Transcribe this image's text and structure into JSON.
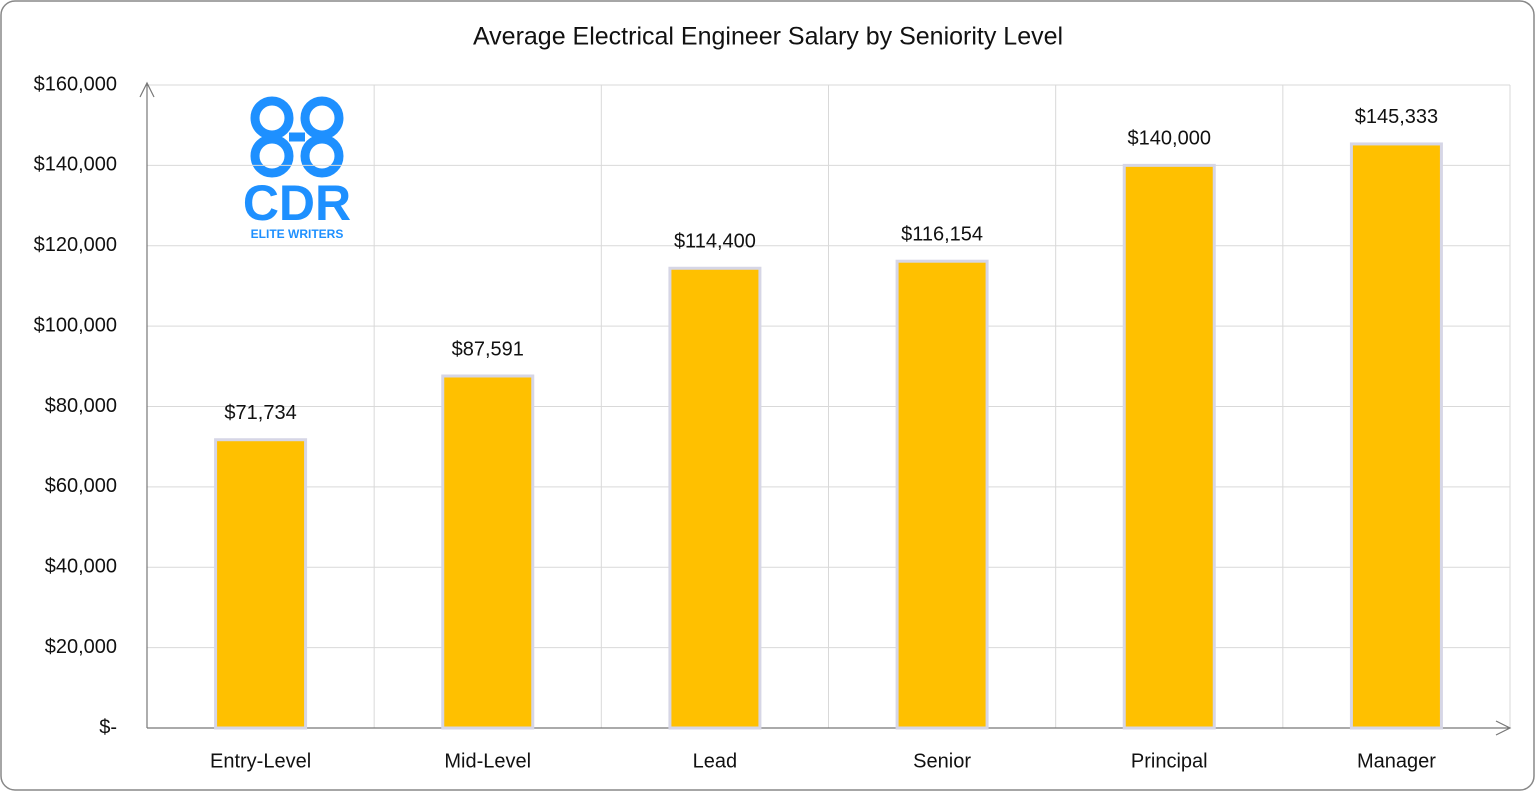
{
  "chart_data": {
    "type": "bar",
    "title": "Average Electrical Engineer Salary by Seniority Level",
    "categories": [
      "Entry-Level",
      "Mid-Level",
      "Lead",
      "Senior",
      "Principal",
      "Manager"
    ],
    "values": [
      71734,
      87591,
      114400,
      116154,
      140000,
      145333
    ],
    "value_labels": [
      "$71,734",
      "$87,591",
      "$114,400",
      "$116,154",
      "$140,000",
      "$145,333"
    ],
    "color": "#ffc000",
    "ylim": [
      0,
      160000
    ],
    "yticks": [
      {
        "value": 0,
        "label": "$-"
      },
      {
        "value": 20000,
        "label": "$20,000"
      },
      {
        "value": 40000,
        "label": "$40,000"
      },
      {
        "value": 60000,
        "label": "$60,000"
      },
      {
        "value": 80000,
        "label": "$80,000"
      },
      {
        "value": 100000,
        "label": "$100,000"
      },
      {
        "value": 120000,
        "label": "$120,000"
      },
      {
        "value": 140000,
        "label": "$140,000"
      },
      {
        "value": 160000,
        "label": "$160,000"
      }
    ],
    "grid": true
  },
  "logo": {
    "text": "CDR",
    "subtext": "ELITE WRITERS"
  }
}
